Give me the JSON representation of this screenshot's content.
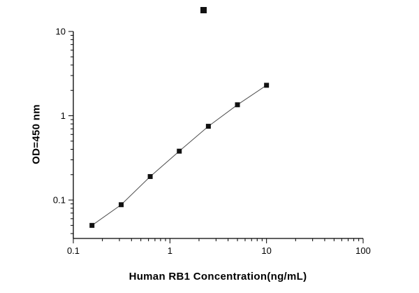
{
  "chart_data": {
    "type": "scatter",
    "xlabel": "Human RB1 Concentration(ng/mL)",
    "ylabel": "OD=450 nm",
    "x_scale": "log",
    "y_scale": "log",
    "xlim": [
      0.1,
      100
    ],
    "ylim": [
      0.035,
      10
    ],
    "x_ticks": [
      0.1,
      1,
      10,
      100
    ],
    "y_ticks": [
      0.1,
      1,
      10
    ],
    "grid": false,
    "legend": "marker-only-top-center",
    "marker": "filled-square",
    "colors": {
      "marker": "#111111",
      "line": "#4d4d4d",
      "axis": "#000000",
      "background": "#ffffff"
    },
    "series": [
      {
        "x": [
          0.156,
          0.313,
          0.625,
          1.25,
          2.5,
          5,
          10
        ],
        "y": [
          0.05,
          0.088,
          0.19,
          0.38,
          0.75,
          1.35,
          2.3
        ]
      }
    ]
  }
}
